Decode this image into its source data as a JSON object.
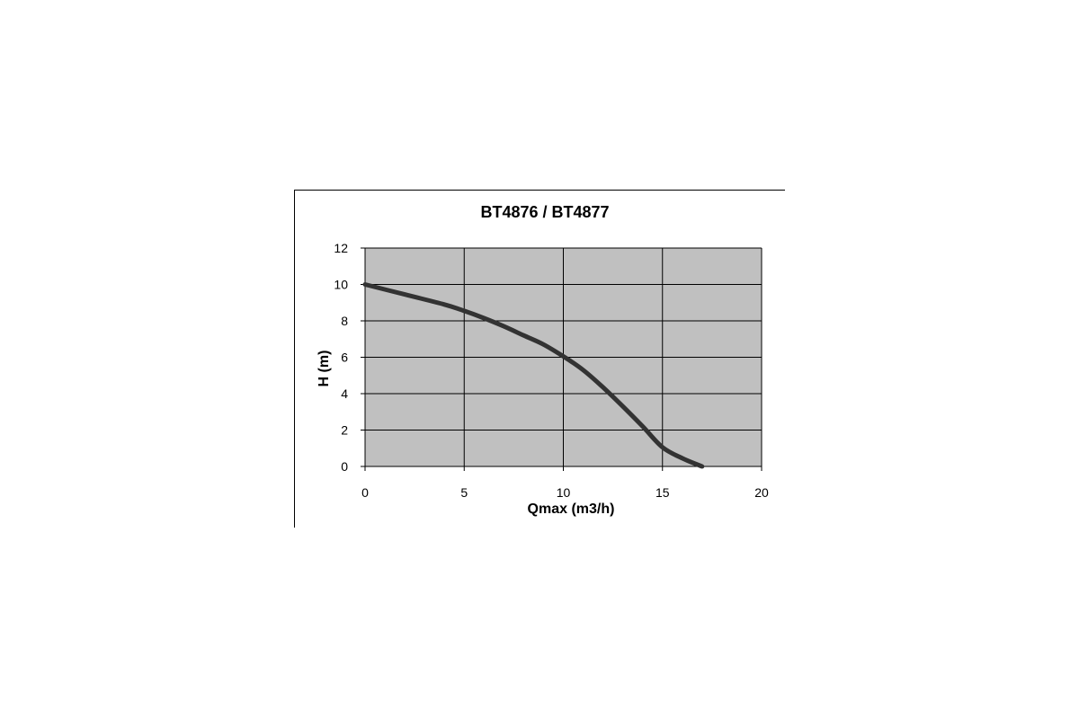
{
  "chart_data": {
    "type": "line",
    "title": "BT4876 / BT4877",
    "xlabel": "Qmax (m3/h)",
    "ylabel": "H (m)",
    "xlim": [
      0,
      20
    ],
    "ylim": [
      0,
      12
    ],
    "x_ticks": [
      "0",
      "5",
      "10",
      "15",
      "20"
    ],
    "y_ticks": [
      "0",
      "2",
      "4",
      "6",
      "8",
      "10",
      "12"
    ],
    "grid": true,
    "legend": "none",
    "plot_background": "#c0c0c0",
    "line_color": "#333333",
    "series": [
      {
        "x": [
          0,
          2,
          4,
          5,
          6,
          7,
          8,
          9,
          10,
          11,
          12,
          13,
          14,
          15,
          16,
          17
        ],
        "y": [
          10.0,
          9.45,
          8.9,
          8.55,
          8.15,
          7.7,
          7.2,
          6.7,
          6.05,
          5.3,
          4.35,
          3.3,
          2.2,
          1.05,
          0.45,
          0.0
        ]
      }
    ]
  }
}
